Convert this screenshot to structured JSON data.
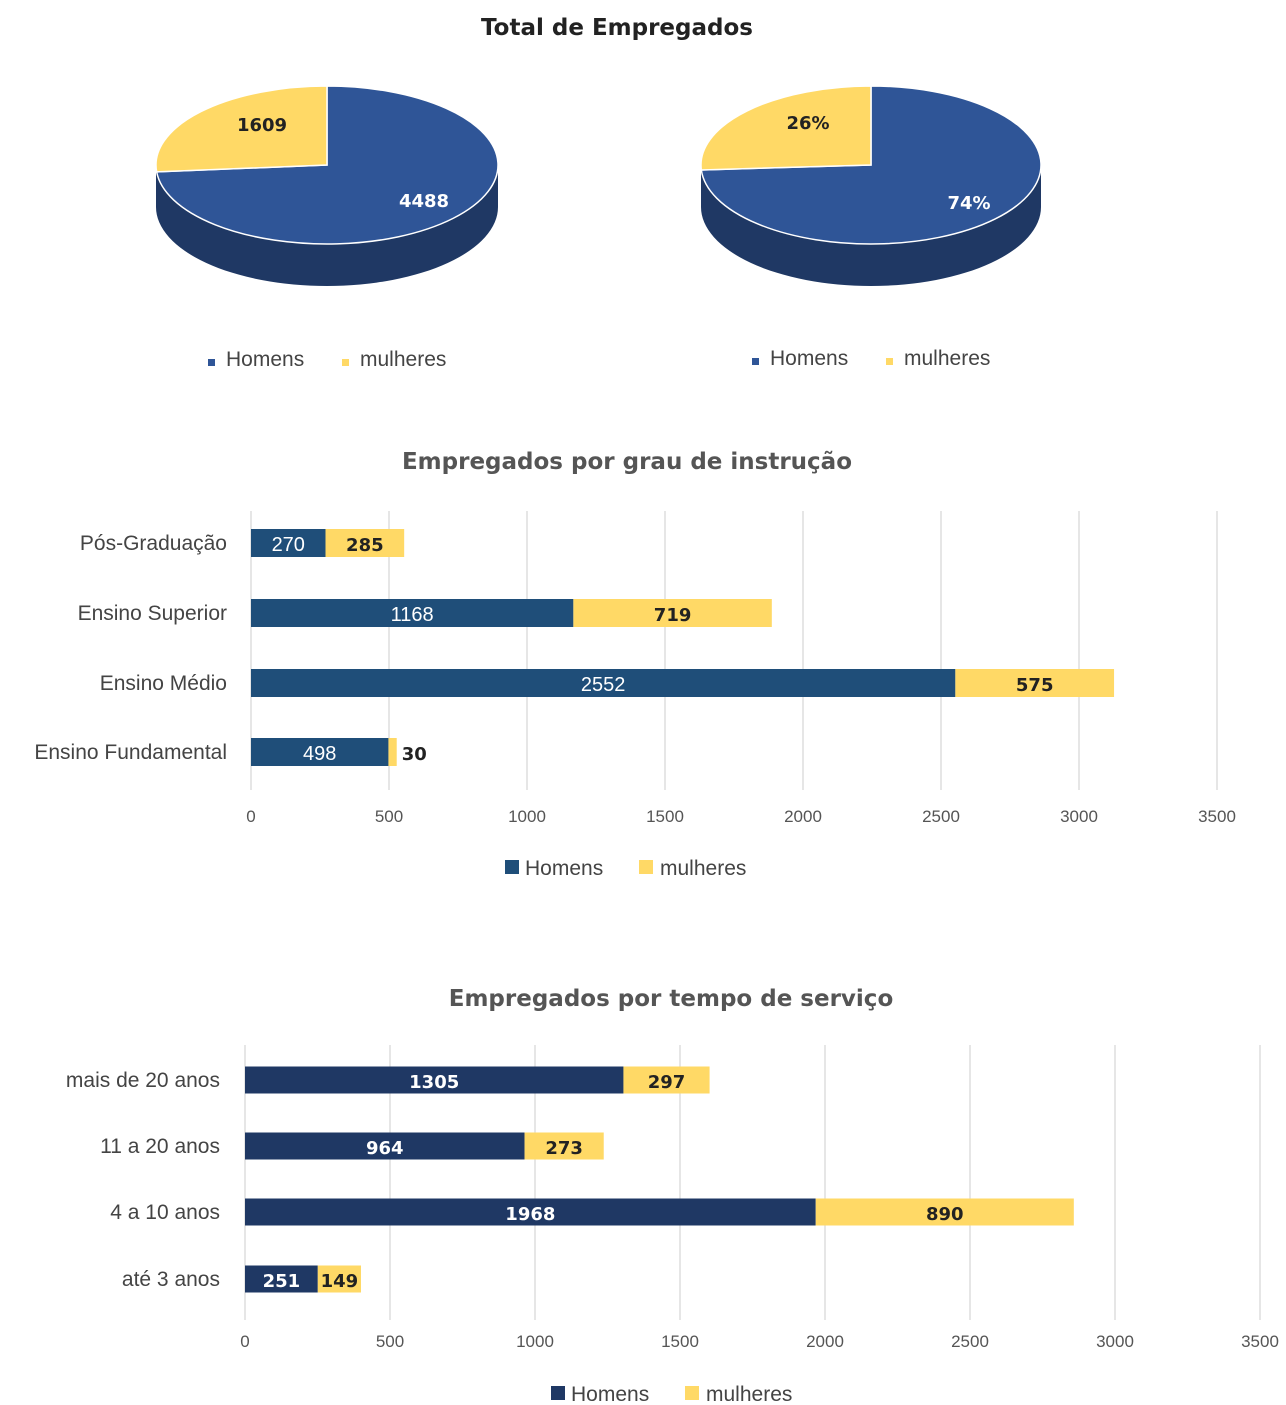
{
  "main_title": "Total de Empregados",
  "colors": {
    "pie_men": "#2F5597",
    "pie_men_side": "#1F3864",
    "women": "#FFD966",
    "bar_men_1": "#1F4E79",
    "bar_men_2": "#1F3864",
    "grid": "#D9D9D9"
  },
  "chart_data": [
    {
      "type": "pie",
      "title": "",
      "series": [
        {
          "name": "Homens",
          "value": 4488,
          "label": "4488"
        },
        {
          "name": "mulheres",
          "value": 1609,
          "label": "1609"
        }
      ],
      "legend": [
        "Homens",
        "mulheres"
      ],
      "legend_position": "bottom"
    },
    {
      "type": "pie",
      "title": "",
      "series": [
        {
          "name": "Homens",
          "value": 74,
          "label": "74%"
        },
        {
          "name": "mulheres",
          "value": 26,
          "label": "26%"
        }
      ],
      "legend": [
        "Homens",
        "mulheres"
      ],
      "legend_position": "bottom"
    },
    {
      "type": "bar",
      "orientation": "horizontal",
      "stacked": true,
      "title": "Empregados por grau de instrução",
      "categories": [
        "Pós-Graduação",
        "Ensino Superior",
        "Ensino Médio",
        "Ensino Fundamental"
      ],
      "series": [
        {
          "name": "Homens",
          "values": [
            270,
            1168,
            2552,
            498
          ]
        },
        {
          "name": "mulheres",
          "values": [
            285,
            719,
            575,
            30
          ]
        }
      ],
      "xlim": [
        0,
        3500
      ],
      "xticks": [
        "0",
        "500",
        "1000",
        "1500",
        "2000",
        "2500",
        "3000",
        "3500"
      ],
      "grid": true,
      "legend_position": "bottom"
    },
    {
      "type": "bar",
      "orientation": "horizontal",
      "stacked": true,
      "title": "Empregados por tempo de serviço",
      "categories": [
        "mais de 20 anos",
        "11 a 20 anos",
        "4 a 10 anos",
        "até 3 anos"
      ],
      "series": [
        {
          "name": "Homens",
          "values": [
            1305,
            964,
            1968,
            251
          ]
        },
        {
          "name": "mulheres",
          "values": [
            297,
            273,
            890,
            149
          ]
        }
      ],
      "xlim": [
        0,
        3500
      ],
      "xticks": [
        "0",
        "500",
        "1000",
        "1500",
        "2000",
        "2500",
        "3000",
        "3500"
      ],
      "grid": true,
      "legend_position": "bottom"
    }
  ]
}
